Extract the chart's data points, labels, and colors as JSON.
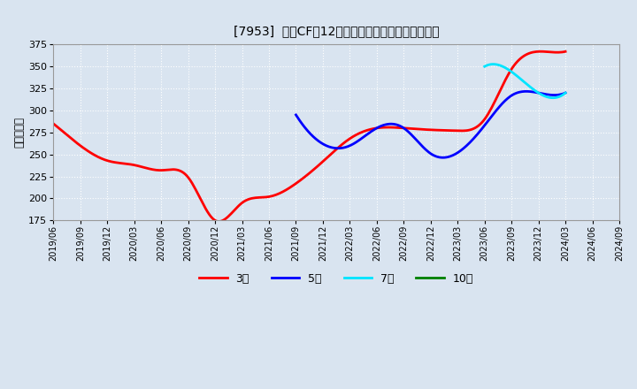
{
  "title": "[7953]  営業CFの12か月移動合計の標準偏差の推移",
  "ylabel": "（百万円）",
  "ylim": [
    175,
    375
  ],
  "yticks": [
    175,
    200,
    225,
    250,
    275,
    300,
    325,
    350,
    375
  ],
  "bg_color": "#d9e4f0",
  "grid_color": "#ffffff",
  "series_3yr": {
    "color": "#ff0000",
    "label": "3年",
    "x": [
      2019.5,
      2019.75,
      2020.0,
      2020.25,
      2020.5,
      2020.75,
      2021.0,
      2021.25,
      2021.5,
      2021.75,
      2022.0,
      2022.25,
      2022.5,
      2022.75,
      2023.0,
      2023.25,
      2023.5,
      2023.75,
      2024.0,
      2024.25
    ],
    "y": [
      285,
      260,
      243,
      238,
      232,
      224,
      175,
      195,
      202,
      217,
      242,
      268,
      280,
      280,
      278,
      277,
      290,
      347,
      367,
      367
    ]
  },
  "series_5yr": {
    "color": "#0000ff",
    "label": "5年",
    "x": [
      2021.75,
      2022.0,
      2022.25,
      2022.5,
      2022.75,
      2023.0,
      2023.25,
      2023.5,
      2023.75,
      2024.0,
      2024.25
    ],
    "y": [
      295,
      262,
      260,
      280,
      280,
      251,
      252,
      283,
      317,
      320,
      320
    ]
  },
  "series_7yr": {
    "color": "#00e5ff",
    "label": "7年",
    "x": [
      2023.5,
      2023.75,
      2024.0,
      2024.25
    ],
    "y": [
      350,
      344,
      320,
      320
    ]
  },
  "series_10yr": {
    "color": "#008000",
    "label": "10年",
    "x": [],
    "y": []
  },
  "xstart": 2019.5,
  "xend": 2024.75,
  "xtick_labels": [
    "2019/06",
    "2019/09",
    "2019/12",
    "2020/03",
    "2020/06",
    "2020/09",
    "2020/12",
    "2021/03",
    "2021/06",
    "2021/09",
    "2021/12",
    "2022/03",
    "2022/06",
    "2022/09",
    "2022/12",
    "2023/03",
    "2023/06",
    "2023/09",
    "2023/12",
    "2024/03",
    "2024/06",
    "2024/09"
  ],
  "xtick_x": [
    2019.5,
    2019.75,
    2020.0,
    2020.25,
    2020.5,
    2020.75,
    2021.0,
    2021.25,
    2021.5,
    2021.75,
    2022.0,
    2022.25,
    2022.5,
    2022.75,
    2023.0,
    2023.25,
    2023.5,
    2023.75,
    2024.0,
    2024.25,
    2024.5,
    2024.75
  ],
  "legend_entries": [
    "3年",
    "5年",
    "7年",
    "10年"
  ],
  "legend_colors": [
    "#ff0000",
    "#0000ff",
    "#00e5ff",
    "#008000"
  ]
}
